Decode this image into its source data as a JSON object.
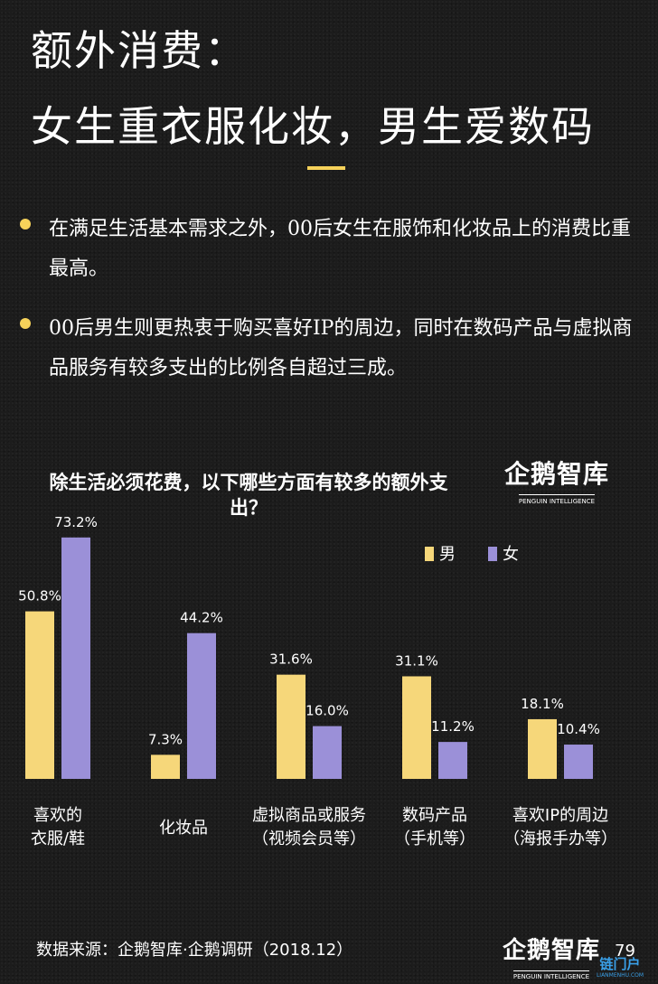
{
  "header": {
    "title_line1": "额外消费：",
    "title_line2": "女生重衣服化妆，男生爱数码"
  },
  "bullets": [
    "在满足生活基本需求之外，00后女生在服饰和化妆品上的消费比重最高。",
    "00后男生则更热衷于购买喜好IP的周边，同时在数码产品与虚拟商品服务有较多支出的比例各自超过三成。"
  ],
  "logo": {
    "name": "企鹅智库",
    "sub": "PENGUIN INTELLIGENCE"
  },
  "chart_data": {
    "type": "bar",
    "title": "除生活必须花费，以下哪些方面有较多的额外支出？",
    "categories": [
      "喜欢的\n衣服/鞋",
      "化妆品",
      "虚拟商品或服务\n（视频会员等）",
      "数码产品\n（手机等）",
      "喜欢IP的周边\n（海报手办等）"
    ],
    "series": [
      {
        "name": "男",
        "color": "#f6d77a",
        "values": [
          50.8,
          7.3,
          31.6,
          31.1,
          18.1
        ],
        "labels": [
          "50.8%",
          "7.3%",
          "31.6%",
          "31.1%",
          "18.1%"
        ]
      },
      {
        "name": "女",
        "color": "#9b90d8",
        "values": [
          73.2,
          44.2,
          16.0,
          11.2,
          10.4
        ],
        "labels": [
          "73.2%",
          "44.2%",
          "16.0%",
          "11.2%",
          "10.4%"
        ]
      }
    ],
    "ylim": [
      0,
      80
    ],
    "grid": false,
    "legend": "top-right",
    "xlabel": "",
    "ylabel": ""
  },
  "footer": {
    "source": "数据来源：企鹅智库·企鹅调研（2018.12）",
    "page_number": "79"
  },
  "watermark": {
    "name": "链门户",
    "sub": "LIANMENHU.COM"
  },
  "colors": {
    "accent": "#f6d25a",
    "background": "#1c1c1c"
  }
}
